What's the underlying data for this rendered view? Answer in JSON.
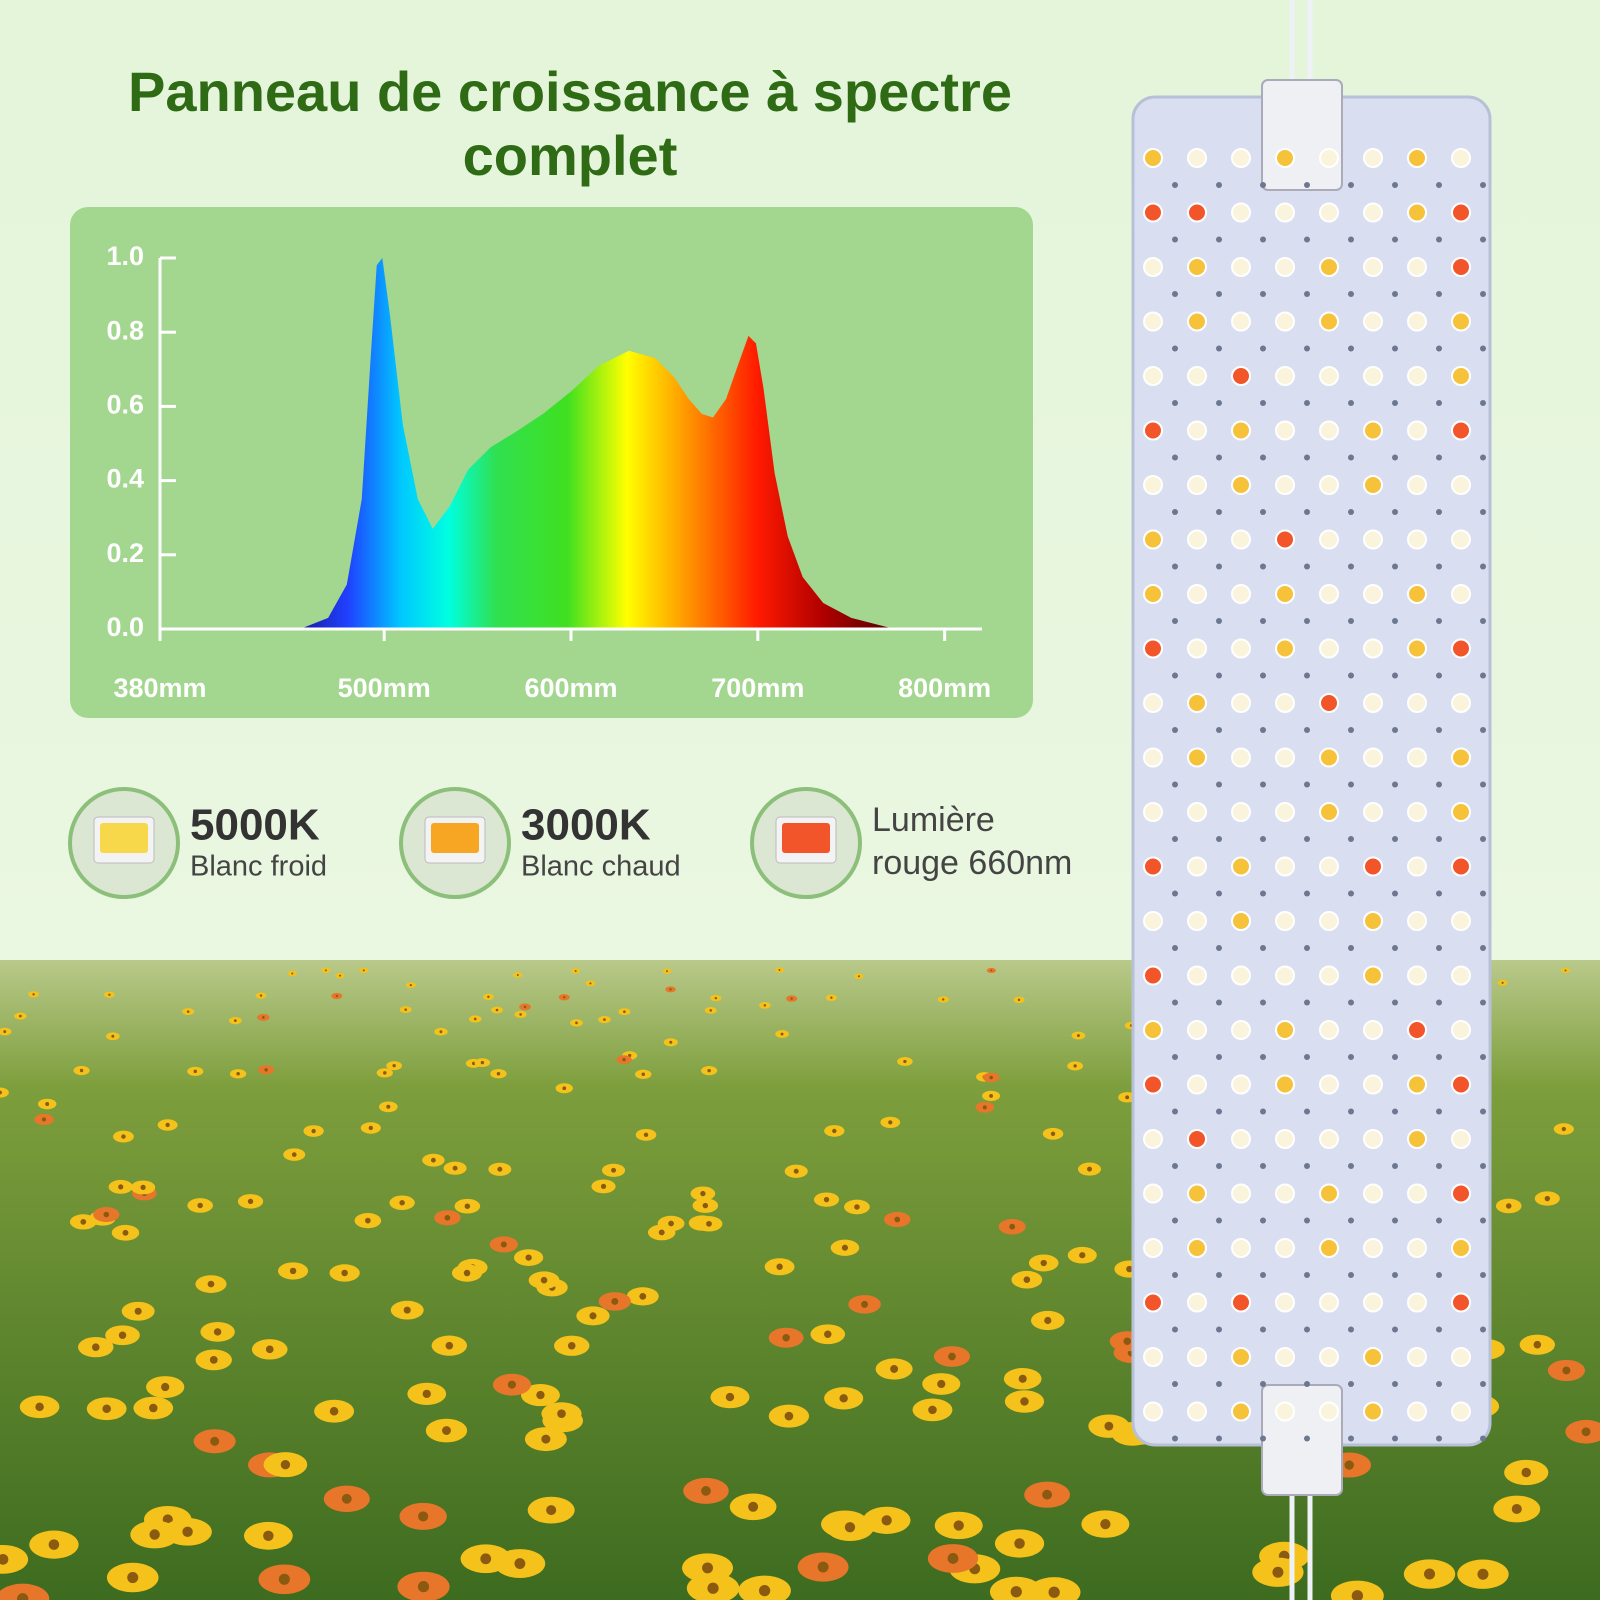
{
  "header": {
    "title": "Panneau de croissance à spectre complet"
  },
  "chart_data": {
    "type": "area",
    "x": [
      455,
      470,
      480,
      488,
      493,
      496,
      499,
      503,
      510,
      518,
      526,
      535,
      545,
      557,
      570,
      585,
      600,
      615,
      631,
      645,
      655,
      663,
      670,
      676,
      683,
      690,
      695,
      699,
      703,
      709,
      716,
      724,
      735,
      750,
      773
    ],
    "values": [
      0,
      0.03,
      0.12,
      0.35,
      0.75,
      0.98,
      1.0,
      0.85,
      0.55,
      0.35,
      0.27,
      0.33,
      0.43,
      0.49,
      0.53,
      0.58,
      0.64,
      0.71,
      0.75,
      0.73,
      0.68,
      0.62,
      0.58,
      0.57,
      0.62,
      0.72,
      0.79,
      0.77,
      0.65,
      0.42,
      0.25,
      0.14,
      0.07,
      0.03,
      0
    ],
    "xlim": [
      380,
      820
    ],
    "xticks": [
      {
        "value": 380,
        "label": "380mm"
      },
      {
        "value": 500,
        "label": "500mm"
      },
      {
        "value": 600,
        "label": "600mm"
      },
      {
        "value": 700,
        "label": "700mm"
      },
      {
        "value": 800,
        "label": "800mm"
      }
    ],
    "ylim": [
      0,
      1
    ],
    "yticks": [
      {
        "value": 0,
        "label": "0.0"
      },
      0.2,
      0.4,
      0.6,
      0.8,
      {
        "value": 1,
        "label": "1.0"
      }
    ]
  },
  "leds": [
    {
      "title": "5000K",
      "subtitle": "Blanc froid",
      "color": "#f6d84a"
    },
    {
      "title": "3000K",
      "subtitle": "Blanc chaud",
      "color": "#f6a623"
    },
    {
      "title": "Lumière",
      "subtitle": "rouge 660nm",
      "color": "#f2552a"
    }
  ]
}
